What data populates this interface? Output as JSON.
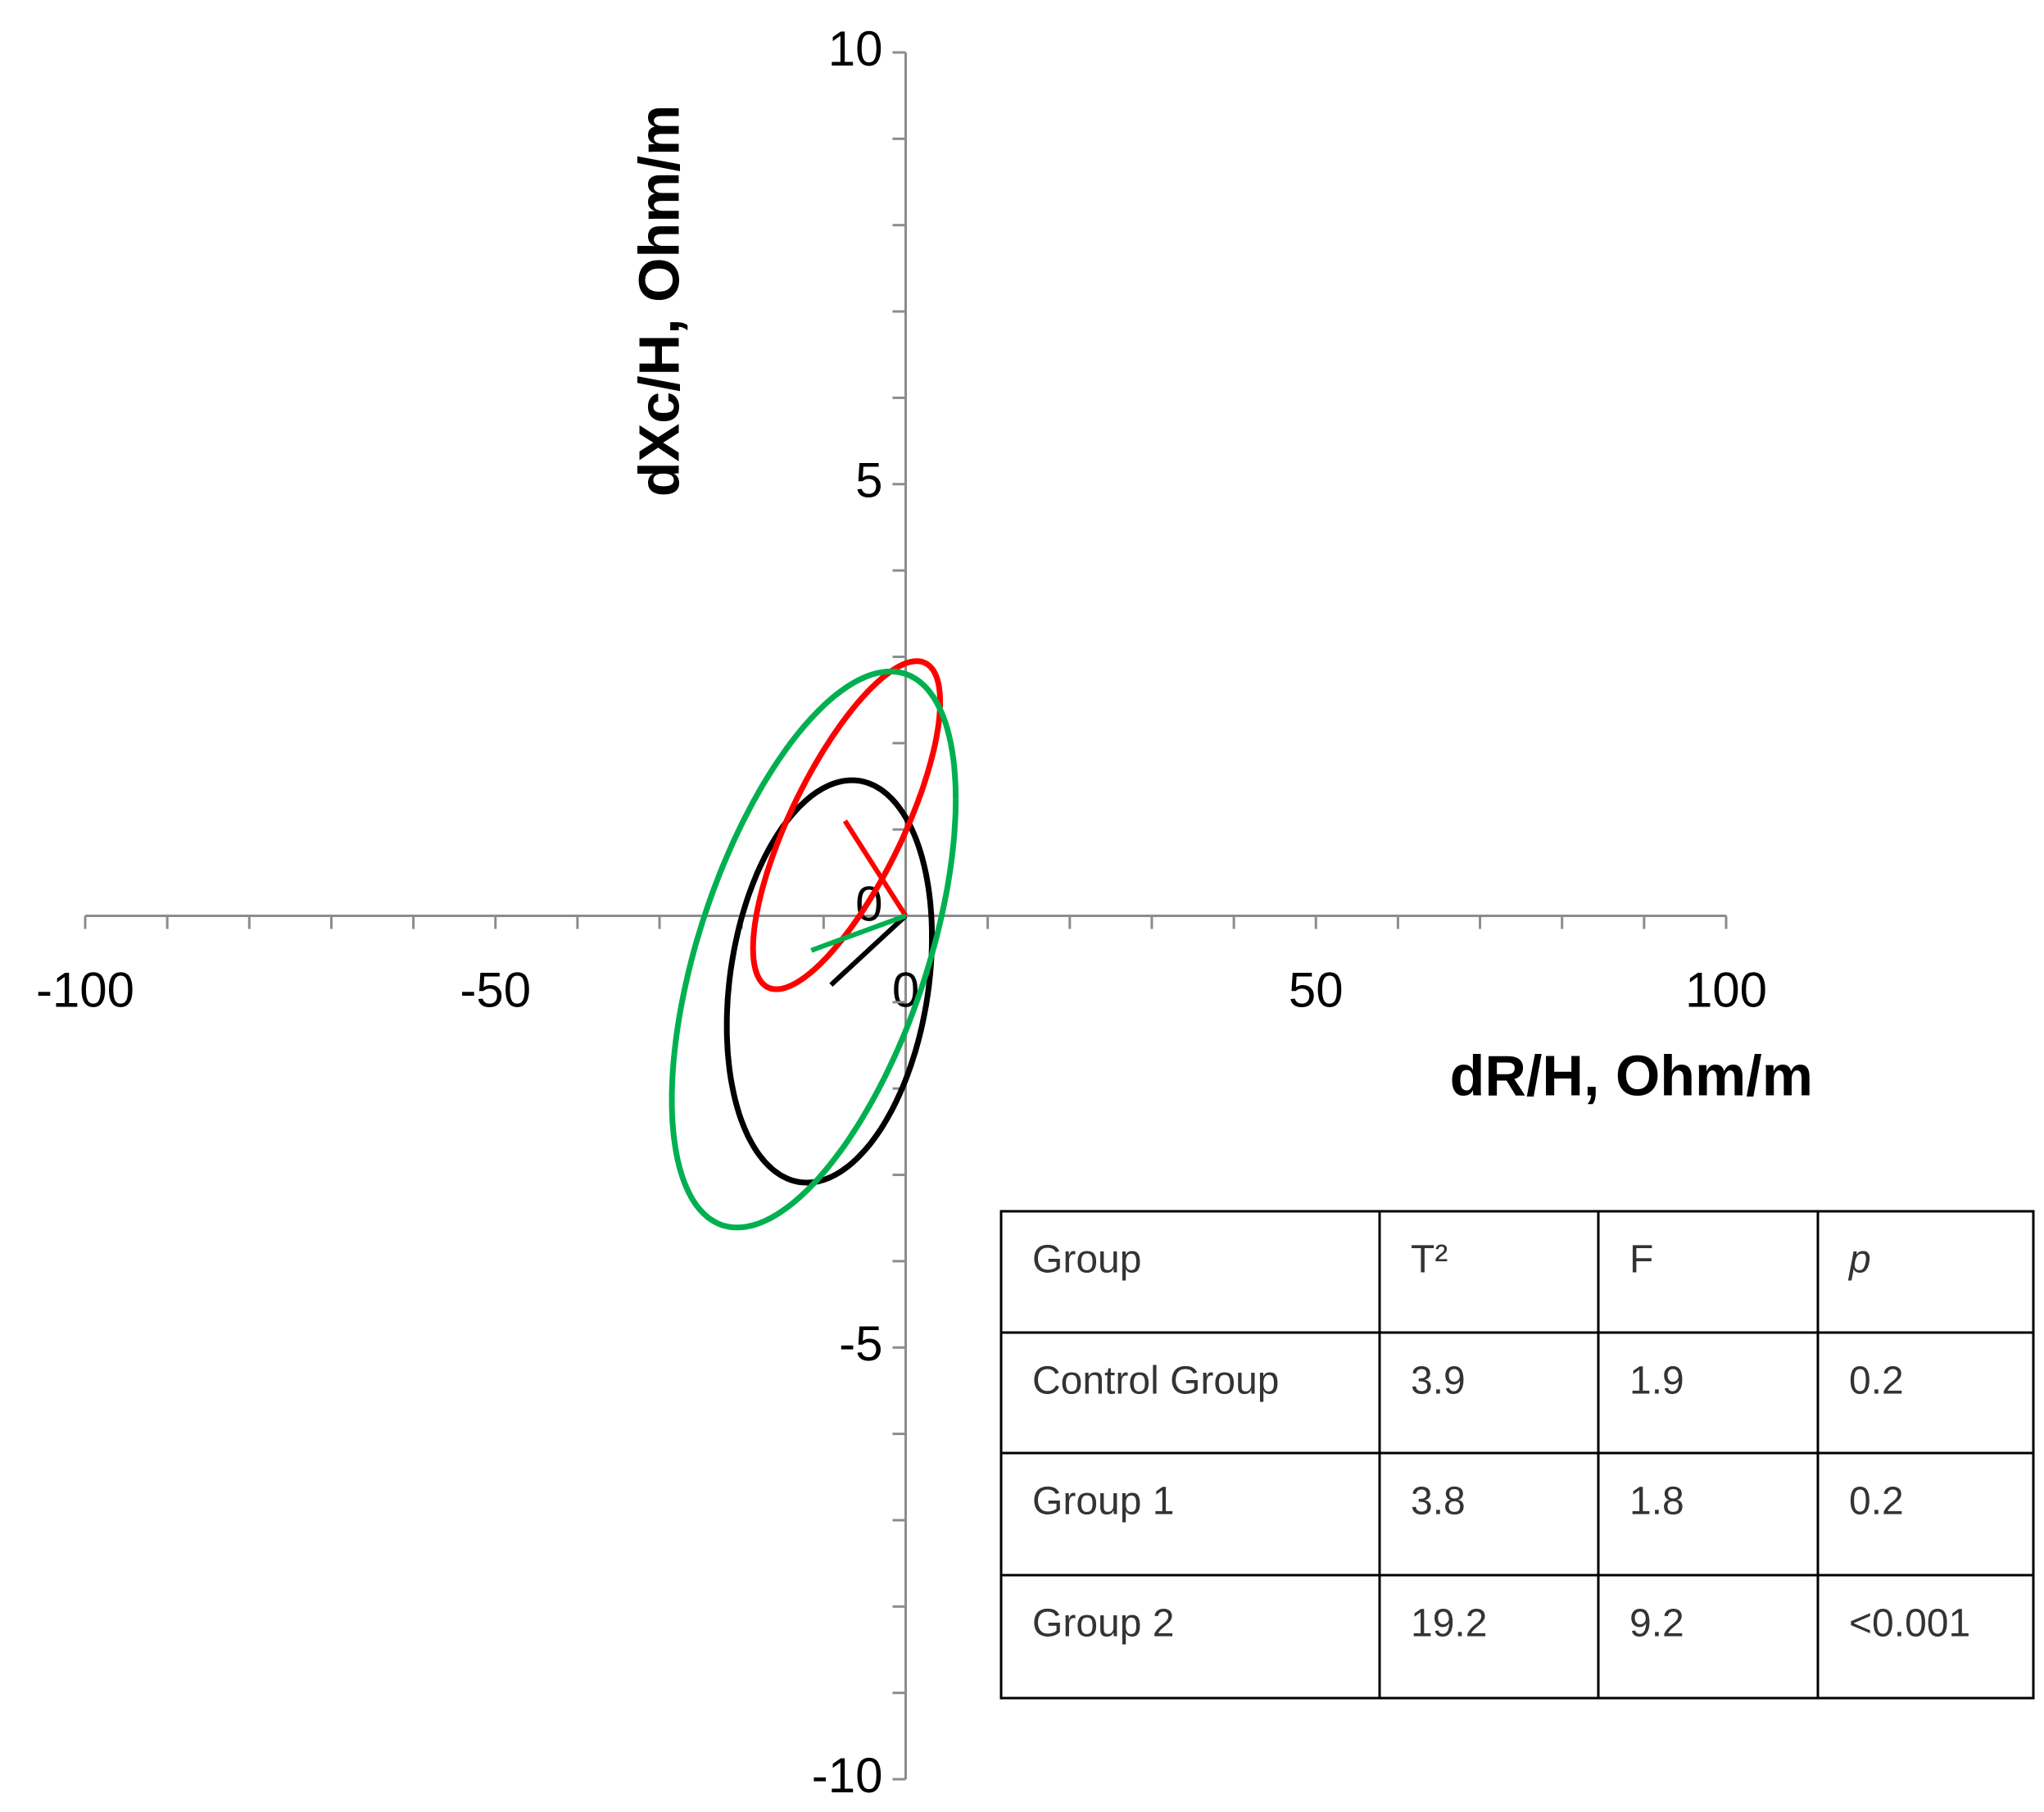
{
  "chart_data": {
    "type": "ellipse",
    "x_label": "dR/H, Ohm/m",
    "y_label": "dXc/H, Ohm/m",
    "xlim": [
      -100,
      100
    ],
    "ylim": [
      -10,
      10
    ],
    "xticks": [
      -100,
      -50,
      0,
      50,
      100
    ],
    "yticks": [
      -10,
      -5,
      0,
      5,
      10
    ],
    "x_minor_ticks": [
      -90,
      -80,
      -70,
      -60,
      -40,
      -30,
      -20,
      -10,
      10,
      20,
      30,
      40,
      60,
      70,
      80,
      90
    ],
    "y_minor_ticks": [
      -9,
      -8,
      -7,
      -6,
      -4,
      -3,
      -2,
      -1,
      1,
      2,
      3,
      4,
      6,
      7,
      8,
      9
    ],
    "series": [
      {
        "color": "#000000",
        "vector": [
          -9.1,
          -0.8
        ],
        "ellipse": {
          "cx": -9.3,
          "cy": -0.76,
          "rx": 12.5,
          "ry": 2.33,
          "rho": 0.22
        }
      },
      {
        "color": "#ff0000",
        "vector": [
          -7.4,
          1.1
        ],
        "ellipse": {
          "cx": -7.2,
          "cy": 1.05,
          "rx": 11.4,
          "ry": 1.9,
          "rho": 0.75
        }
      },
      {
        "color": "#00b050",
        "vector": [
          -11.5,
          -0.4
        ],
        "ellipse": {
          "cx": -11.2,
          "cy": -0.39,
          "rx": 17.3,
          "ry": 3.22,
          "rho": 0.54
        }
      }
    ]
  },
  "table": {
    "header": [
      "Group",
      "T²",
      "F",
      "p"
    ],
    "rows": [
      [
        "Control Group",
        "3.9",
        "1.9",
        "0.2"
      ],
      [
        "Group 1",
        "3.8",
        "1.8",
        "0.2"
      ],
      [
        "Group 2",
        "19.2",
        "9.2",
        "<0.001"
      ]
    ]
  }
}
